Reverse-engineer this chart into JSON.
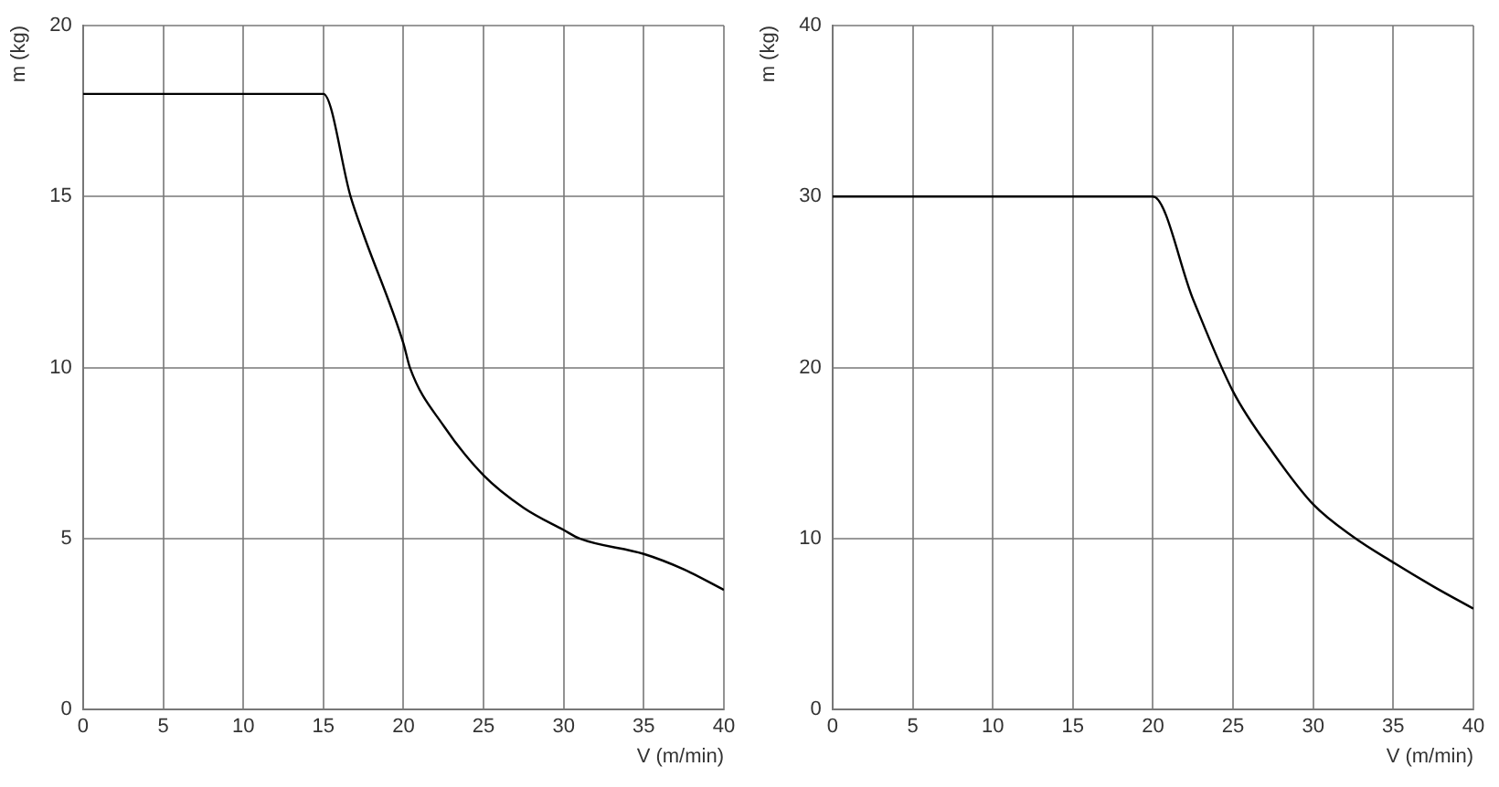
{
  "chart_data": [
    {
      "type": "line",
      "xlabel": "V (m/min)",
      "ylabel": "m (kg)",
      "x": [
        0,
        15,
        16.7,
        17.5,
        20,
        20.4,
        22.5,
        25,
        27.5,
        30,
        31,
        35,
        37.5,
        40
      ],
      "values": [
        18,
        18,
        15,
        13.9,
        10.7,
        10,
        8.3,
        6.85,
        5.9,
        5.25,
        5,
        4.55,
        4.1,
        3.5
      ],
      "color": "#000000",
      "xlim": [
        0,
        40
      ],
      "ylim": [
        0,
        20
      ],
      "xticks": [
        0,
        5,
        10,
        15,
        20,
        25,
        30,
        35,
        40
      ],
      "yticks": [
        0,
        5,
        10,
        15,
        20
      ],
      "grid": true,
      "legend": false,
      "marker": "none",
      "line_style": "solid"
    },
    {
      "type": "line",
      "xlabel": "V (m/min)",
      "ylabel": "m (kg)",
      "x": [
        0,
        20,
        22.5,
        25,
        27.5,
        30,
        32.5,
        35,
        37.5,
        40
      ],
      "values": [
        30,
        30,
        24,
        18.6,
        15,
        12,
        10.1,
        8.6,
        7.2,
        5.9
      ],
      "color": "#000000",
      "xlim": [
        0,
        40
      ],
      "ylim": [
        0,
        40
      ],
      "xticks": [
        0,
        5,
        10,
        15,
        20,
        25,
        30,
        35,
        40
      ],
      "yticks": [
        0,
        10,
        20,
        30,
        40
      ],
      "grid": true,
      "legend": false,
      "marker": "none",
      "line_style": "solid"
    }
  ]
}
